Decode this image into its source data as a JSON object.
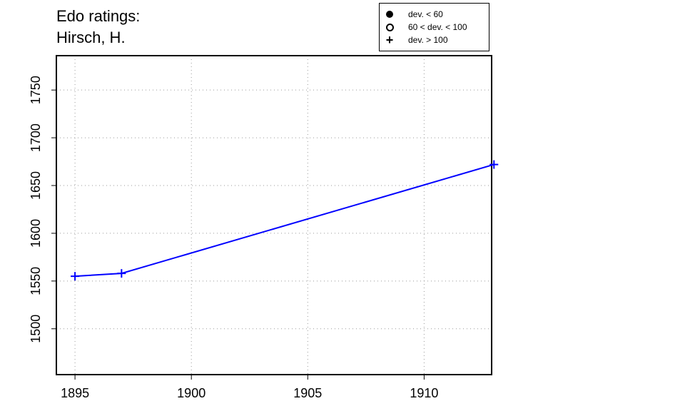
{
  "chart_data": {
    "type": "line",
    "title_lines": [
      "Edo ratings:",
      "Hirsch, H."
    ],
    "xlabel": "",
    "ylabel": "",
    "x": [
      1895,
      1897,
      1913
    ],
    "series": [
      {
        "values": [
          1555,
          1558,
          1672
        ],
        "color": "#0000ff",
        "marker": "plus"
      }
    ],
    "xlim": [
      1894.2,
      1912.9
    ],
    "ylim": [
      1452,
      1786
    ],
    "xticks": [
      1895,
      1900,
      1905,
      1910
    ],
    "yticks": [
      1500,
      1550,
      1600,
      1650,
      1700,
      1750
    ],
    "grid": true,
    "legend": {
      "placement": "top-right",
      "entries": [
        {
          "symbol": "filled-circle",
          "label": "dev. < 60"
        },
        {
          "symbol": "open-circle",
          "label": "60 < dev. < 100"
        },
        {
          "symbol": "plus",
          "label": "dev. > 100"
        }
      ]
    }
  }
}
